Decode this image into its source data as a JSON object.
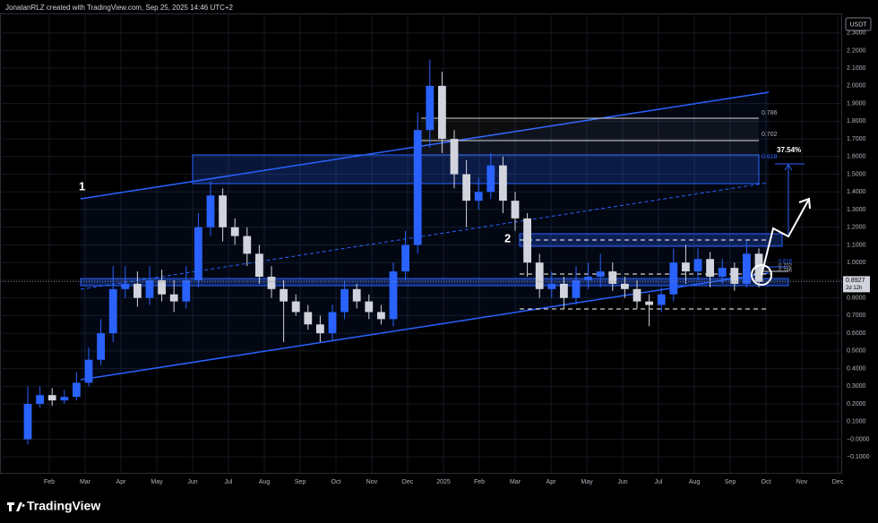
{
  "header": "JonatanRLZ created with TradingView.com, Sep 25, 2025 14:46 UTC+2",
  "chart_data": {
    "type": "candlestick",
    "currency": "USDT",
    "up_color": "#2962ff",
    "down_color": "#d1d4dc",
    "x": [
      0.4,
      0.74,
      1.08,
      1.42,
      1.76,
      2.1,
      2.44,
      2.78,
      3.12,
      3.46,
      3.8,
      4.14,
      4.48,
      4.82,
      5.16,
      5.5,
      5.84,
      6.18,
      6.52,
      6.86,
      7.2,
      7.54,
      7.88,
      8.22,
      8.56,
      8.9,
      9.24,
      9.58,
      9.92,
      10.26,
      10.6,
      10.94,
      11.28,
      11.62,
      11.96,
      12.3,
      12.64,
      12.98,
      13.32,
      13.66,
      14.0,
      14.34,
      14.68,
      15.02,
      15.36,
      15.7,
      16.04,
      16.38,
      16.72,
      17.06,
      17.4,
      17.74,
      18.08,
      18.42,
      18.76,
      19.1,
      19.44,
      19.78,
      20.12,
      20.46,
      20.8
    ],
    "open": [
      0.0,
      0.2,
      0.25,
      0.22,
      0.24,
      0.32,
      0.45,
      0.6,
      0.85,
      0.88,
      0.8,
      0.9,
      0.82,
      0.78,
      0.9,
      1.2,
      1.38,
      1.2,
      1.15,
      1.05,
      0.92,
      0.85,
      0.78,
      0.72,
      0.65,
      0.6,
      0.72,
      0.85,
      0.78,
      0.72,
      0.68,
      0.95,
      1.1,
      1.75,
      2.0,
      1.7,
      1.5,
      1.35,
      1.4,
      1.55,
      1.35,
      1.25,
      1.0,
      0.85,
      0.88,
      0.8,
      0.9,
      0.92,
      0.95,
      0.88,
      0.85,
      0.78,
      0.76,
      0.82,
      1.0,
      0.95,
      1.02,
      0.92,
      0.97,
      0.88,
      1.05
    ],
    "high": [
      0.3,
      0.3,
      0.29,
      0.28,
      0.38,
      0.52,
      0.68,
      0.98,
      0.98,
      0.95,
      0.98,
      0.96,
      0.9,
      0.98,
      1.28,
      1.46,
      1.42,
      1.25,
      1.2,
      1.1,
      0.98,
      0.9,
      0.82,
      0.76,
      0.7,
      0.76,
      0.9,
      0.88,
      0.82,
      0.76,
      1.0,
      1.18,
      1.85,
      2.15,
      2.08,
      1.75,
      1.58,
      1.48,
      1.62,
      1.6,
      1.4,
      1.28,
      1.05,
      0.95,
      0.92,
      0.98,
      1.0,
      1.05,
      1.0,
      0.92,
      0.9,
      0.82,
      0.86,
      1.08,
      1.1,
      1.08,
      1.06,
      1.02,
      1.0,
      1.12,
      1.08
    ],
    "low": [
      -0.03,
      0.18,
      0.19,
      0.2,
      0.22,
      0.3,
      0.42,
      0.55,
      0.8,
      0.75,
      0.76,
      0.78,
      0.72,
      0.74,
      0.86,
      1.15,
      1.12,
      1.1,
      0.98,
      0.88,
      0.8,
      0.55,
      0.7,
      0.62,
      0.55,
      0.56,
      0.68,
      0.74,
      0.68,
      0.65,
      0.64,
      0.9,
      1.05,
      1.65,
      1.62,
      1.42,
      1.2,
      1.3,
      1.36,
      1.28,
      1.18,
      0.92,
      0.8,
      0.8,
      0.74,
      0.76,
      0.85,
      0.86,
      0.84,
      0.8,
      0.74,
      0.64,
      0.72,
      0.78,
      0.88,
      0.9,
      0.86,
      0.88,
      0.84,
      0.86,
      0.86
    ],
    "close": [
      0.2,
      0.25,
      0.22,
      0.24,
      0.32,
      0.45,
      0.6,
      0.85,
      0.88,
      0.8,
      0.9,
      0.82,
      0.78,
      0.9,
      1.2,
      1.38,
      1.2,
      1.15,
      1.05,
      0.92,
      0.85,
      0.78,
      0.72,
      0.65,
      0.6,
      0.72,
      0.85,
      0.78,
      0.72,
      0.68,
      0.95,
      1.1,
      1.75,
      2.0,
      1.7,
      1.5,
      1.35,
      1.4,
      1.55,
      1.35,
      1.25,
      1.0,
      0.85,
      0.88,
      0.8,
      0.9,
      0.92,
      0.95,
      0.88,
      0.85,
      0.78,
      0.76,
      0.82,
      1.0,
      0.95,
      1.02,
      0.92,
      0.97,
      0.88,
      1.05,
      0.89
    ],
    "xlim": [
      -0.375,
      23.125
    ],
    "ylim": [
      -0.19,
      2.41
    ],
    "xticks": [
      {
        "value": 1,
        "label": "Feb"
      },
      {
        "value": 2,
        "label": "Mar"
      },
      {
        "value": 3,
        "label": "Apr"
      },
      {
        "value": 4,
        "label": "May"
      },
      {
        "value": 5,
        "label": "Jun"
      },
      {
        "value": 6,
        "label": "Jul"
      },
      {
        "value": 7,
        "label": "Aug"
      },
      {
        "value": 8,
        "label": "Sep"
      },
      {
        "value": 9,
        "label": "Oct"
      },
      {
        "value": 10,
        "label": "Nov"
      },
      {
        "value": 11,
        "label": "Dec"
      },
      {
        "value": 12,
        "label": "2025"
      },
      {
        "value": 13,
        "label": "Feb"
      },
      {
        "value": 14,
        "label": "Mar"
      },
      {
        "value": 15,
        "label": "Apr"
      },
      {
        "value": 16,
        "label": "May"
      },
      {
        "value": 17,
        "label": "Jun"
      },
      {
        "value": 18,
        "label": "Jul"
      },
      {
        "value": 19,
        "label": "Aug"
      },
      {
        "value": 20,
        "label": "Sep"
      },
      {
        "value": 21,
        "label": "Oct"
      },
      {
        "value": 22,
        "label": "Nov"
      },
      {
        "value": 23,
        "label": "Dec"
      }
    ],
    "yticks": [
      {
        "value": 2.3,
        "label": "2.3000"
      },
      {
        "value": 2.2,
        "label": "2.2000"
      },
      {
        "value": 2.1,
        "label": "2.1000"
      },
      {
        "value": 2.0,
        "label": "2.0000"
      },
      {
        "value": 1.9,
        "label": "1.9000"
      },
      {
        "value": 1.8,
        "label": "1.8000"
      },
      {
        "value": 1.7,
        "label": "1.7000"
      },
      {
        "value": 1.6,
        "label": "1.6000"
      },
      {
        "value": 1.5,
        "label": "1.5000"
      },
      {
        "value": 1.4,
        "label": "1.4000"
      },
      {
        "value": 1.3,
        "label": "1.3000"
      },
      {
        "value": 1.2,
        "label": "1.2000"
      },
      {
        "value": 1.1,
        "label": "1.1000"
      },
      {
        "value": 1.0,
        "label": "1.0000"
      },
      {
        "value": 0.9,
        "label": "0.9000"
      },
      {
        "value": 0.8,
        "label": "0.8000"
      },
      {
        "value": 0.7,
        "label": "0.7000"
      },
      {
        "value": 0.6,
        "label": "0.6000"
      },
      {
        "value": 0.5,
        "label": "0.5000"
      },
      {
        "value": 0.4,
        "label": "0.4000"
      },
      {
        "value": 0.3,
        "label": "0.3000"
      },
      {
        "value": 0.2,
        "label": "0.2000"
      },
      {
        "value": 0.1,
        "label": "0.1000"
      },
      {
        "value": 0,
        "label": "−0.0000"
      },
      {
        "value": -0.1,
        "label": "−0.1000"
      }
    ],
    "grid": true,
    "last_price": 0.8927,
    "countdown": "2d 12h",
    "annotations": {
      "wave_1": "1",
      "wave_2": "2",
      "target_gain": "37.54%",
      "fib_upper": [
        "0.786",
        "0.702",
        "0.618"
      ],
      "fib_lower": [
        "0.618",
        "0.702",
        "0.786"
      ]
    }
  },
  "footer": "TradingView"
}
